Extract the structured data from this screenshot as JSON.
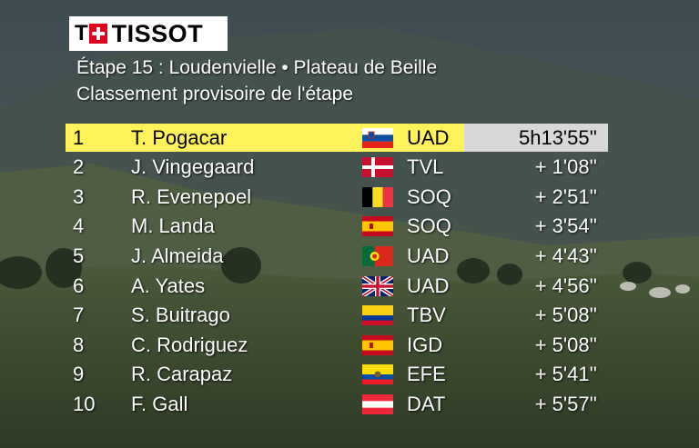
{
  "logo": {
    "brand": "TISSOT",
    "mark": "T"
  },
  "header": {
    "stage": "Étape 15 : Loudenvielle • Plateau de Beille",
    "subtitle": "Classement provisoire de l'étape"
  },
  "rows": [
    {
      "rank": "1",
      "name": "T. Pogacar",
      "flag": "slovenia-flag",
      "team": "UAD",
      "time": "5h13'55''"
    },
    {
      "rank": "2",
      "name": "J. Vingegaard",
      "flag": "denmark-flag",
      "team": "TVL",
      "time": "+ 1'08''"
    },
    {
      "rank": "3",
      "name": "R. Evenepoel",
      "flag": "belgium-flag",
      "team": "SOQ",
      "time": "+ 2'51''"
    },
    {
      "rank": "4",
      "name": "M. Landa",
      "flag": "spain-flag",
      "team": "SOQ",
      "time": "+ 3'54''"
    },
    {
      "rank": "5",
      "name": "J. Almeida",
      "flag": "portugal-flag",
      "team": "UAD",
      "time": "+ 4'43''"
    },
    {
      "rank": "6",
      "name": "A. Yates",
      "flag": "united-kingdom-flag",
      "team": "UAD",
      "time": "+ 4'56''"
    },
    {
      "rank": "7",
      "name": "S. Buitrago",
      "flag": "colombia-flag",
      "team": "TBV",
      "time": "+ 5'08''"
    },
    {
      "rank": "8",
      "name": "C. Rodriguez",
      "flag": "spain-flag",
      "team": "IGD",
      "time": "+ 5'08''"
    },
    {
      "rank": "9",
      "name": "R. Carapaz",
      "flag": "ecuador-flag",
      "team": "EFE",
      "time": "+ 5'41''"
    },
    {
      "rank": "10",
      "name": "F. Gall",
      "flag": "austria-flag",
      "team": "DAT",
      "time": "+ 5'57''"
    }
  ],
  "colors": {
    "leader_row": "#fff35c",
    "leader_time_bg": "#d8d8d8",
    "text": "#ffffff",
    "logo_red": "#e2001a"
  }
}
